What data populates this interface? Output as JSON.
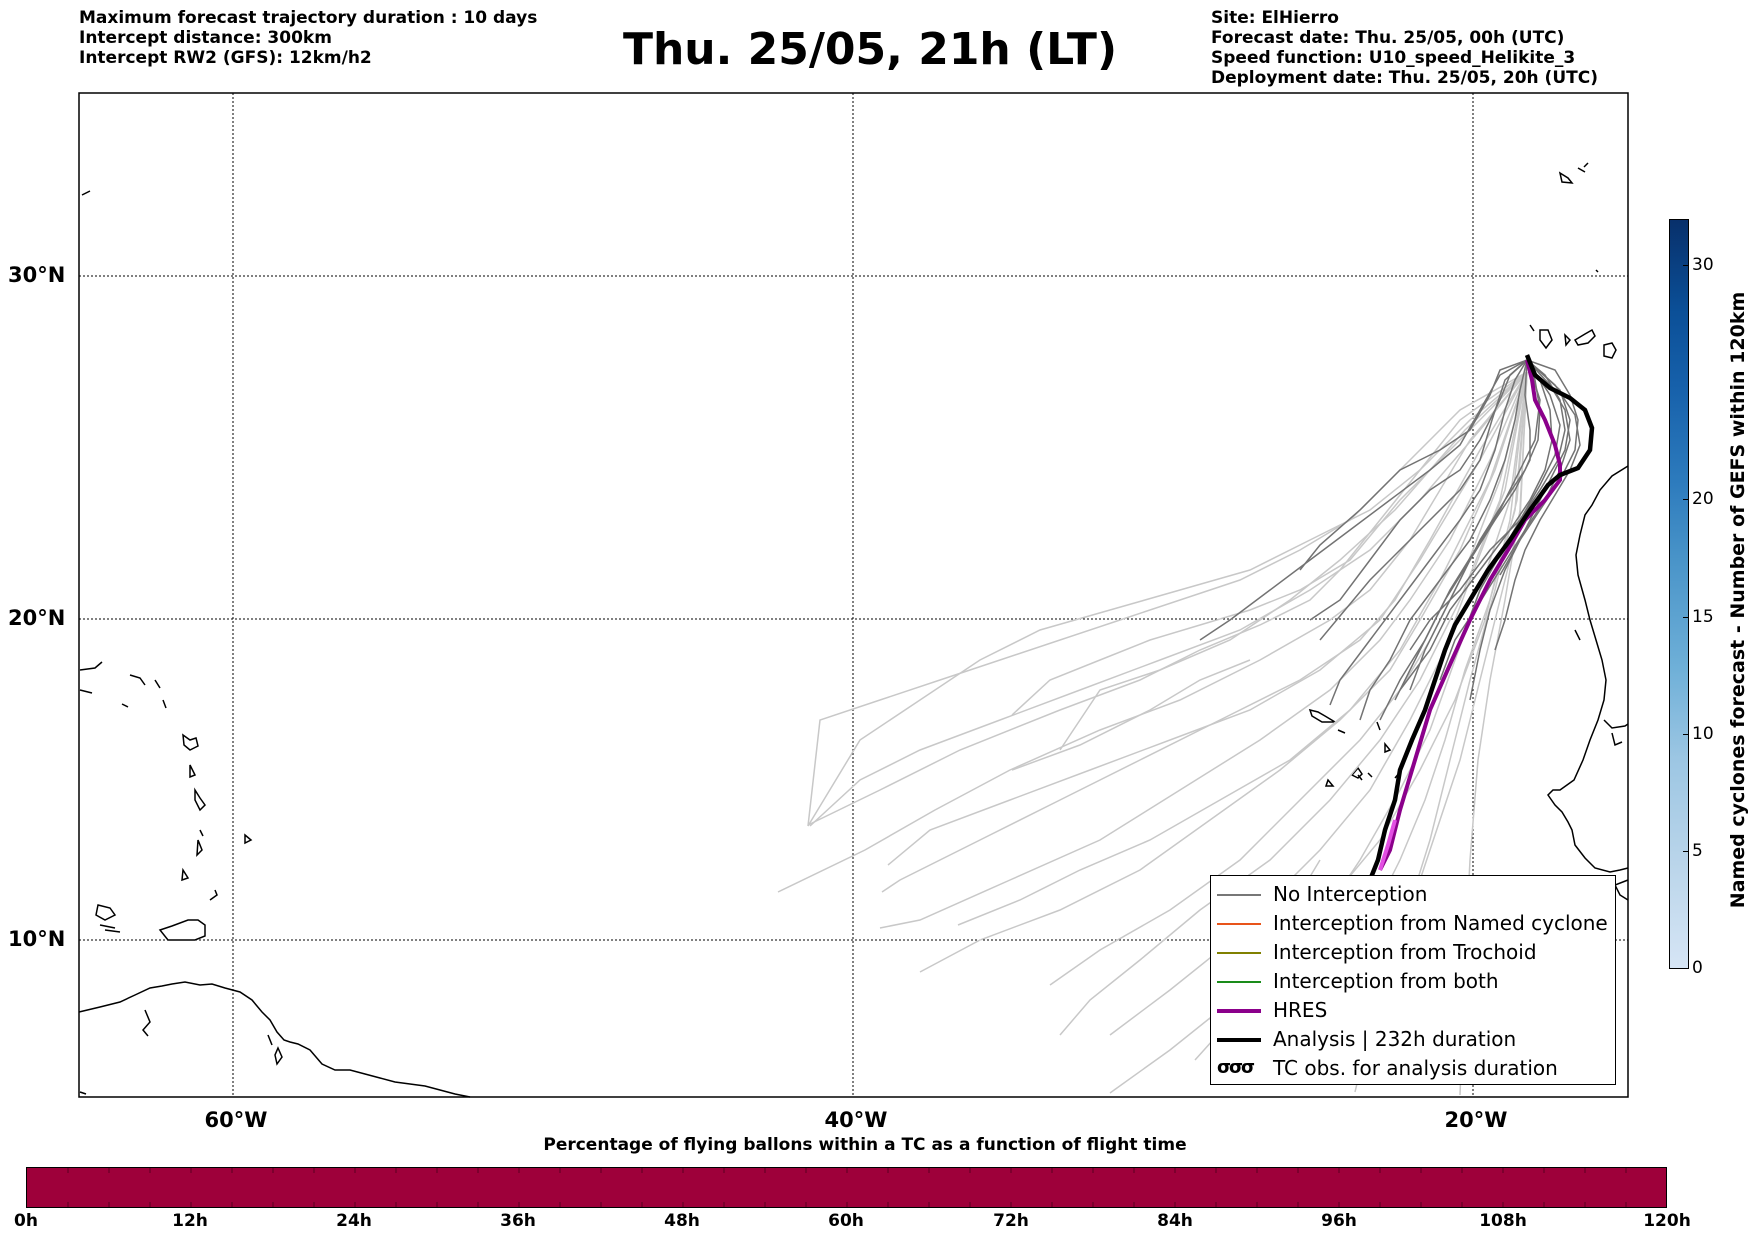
{
  "header": {
    "left_lines": [
      "Maximum forecast trajectory duration : 10 days",
      "Intercept distance: 300km",
      "Intercept RW2 (GFS):  12km/h2"
    ],
    "title": "Thu. 25/05, 21h (LT)",
    "right_lines": [
      "Site: ElHierro",
      "Forecast date: Thu. 25/05, 00h (UTC)",
      "Speed function: U10_speed_Helikite_3",
      "Deployment date: Thu. 25/05, 20h (UTC)"
    ]
  },
  "map": {
    "lat_labels": [
      "30°N",
      "20°N",
      "10°N"
    ],
    "lon_labels": [
      "60°W",
      "40°W",
      "20°W"
    ]
  },
  "legend": {
    "items": [
      {
        "label": "No Interception",
        "color": "#777777"
      },
      {
        "label": "Interception from Named cyclone",
        "color": "#e8541a"
      },
      {
        "label": "Interception from Trochoid",
        "color": "#808000"
      },
      {
        "label": "Interception from both",
        "color": "#1a8c1a"
      },
      {
        "label": "HRES",
        "color": "#8b008b"
      },
      {
        "label": "Analysis | 232h duration",
        "color": "#000000"
      },
      {
        "label": "TC obs. for analysis duration",
        "symbol": "σσσ"
      }
    ]
  },
  "colorbar": {
    "label": "Named cyclones forecast - Number of GEFS within 120km",
    "ticks": [
      "0",
      "5",
      "10",
      "15",
      "20",
      "30"
    ]
  },
  "percentage_bar": {
    "title": "Percentage of flying ballons within a TC as a function of flight time",
    "color": "#9e003a",
    "ticks": [
      "0h",
      "12h",
      "24h",
      "36h",
      "48h",
      "60h",
      "72h",
      "84h",
      "96h",
      "108h",
      "120h"
    ]
  }
}
